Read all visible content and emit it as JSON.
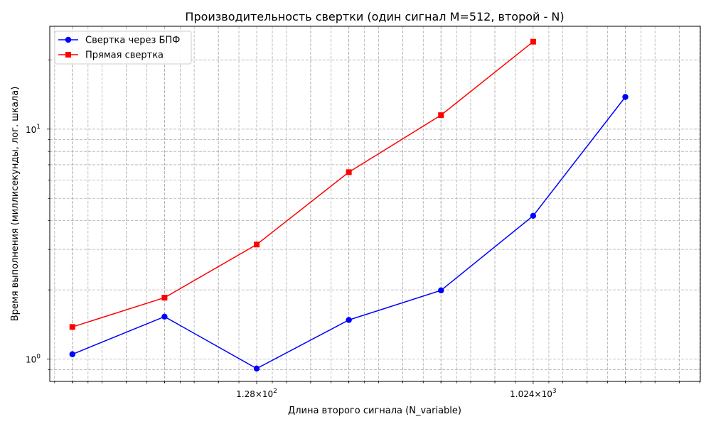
{
  "chart_data": {
    "type": "line",
    "title": "Производительность свертки (один сигнал M=512, второй - N)",
    "xlabel": "Длина второго сигнала (N_variable)",
    "ylabel": "Время выполнения (миллисекунды, лог. шкала)",
    "xscale": "log2",
    "yscale": "log10",
    "xlim": [
      27,
      3600
    ],
    "ylim": [
      0.8,
      28
    ],
    "x_major_ticks": [
      {
        "value": 128,
        "label_base": "1.28",
        "label_exp": "2"
      },
      {
        "value": 1024,
        "label_base": "1.024",
        "label_exp": "3"
      }
    ],
    "y_major_ticks": [
      {
        "value": 1,
        "label_base": "10",
        "label_exp": "0"
      },
      {
        "value": 10,
        "label_base": "10",
        "label_exp": "1"
      }
    ],
    "grid": true,
    "legend_position": "top-left",
    "series": [
      {
        "name": "Свертка через БПФ",
        "color": "#0000ff",
        "marker": "circle",
        "x": [
          32,
          64,
          128,
          256,
          512,
          1024,
          2048
        ],
        "y": [
          1.05,
          1.53,
          0.91,
          1.48,
          1.99,
          4.2,
          13.8
        ]
      },
      {
        "name": "Прямая свертка",
        "color": "#ff0000",
        "marker": "square",
        "x": [
          32,
          64,
          128,
          256,
          512,
          1024
        ],
        "y": [
          1.38,
          1.85,
          3.15,
          6.5,
          11.5,
          24.0
        ]
      }
    ]
  }
}
